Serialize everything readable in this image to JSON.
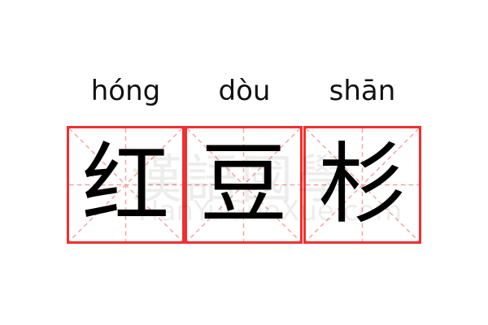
{
  "entries": [
    {
      "pinyin": "hóng",
      "char": "红"
    },
    {
      "pinyin": "dòu",
      "char": "豆"
    },
    {
      "pinyin": "shān",
      "char": "杉"
    }
  ],
  "watermark": {
    "text": "漢語國學",
    "url": "HanYuGuoXue.com"
  },
  "colors": {
    "border": "#f03030",
    "guide": "#f4a0a0"
  }
}
